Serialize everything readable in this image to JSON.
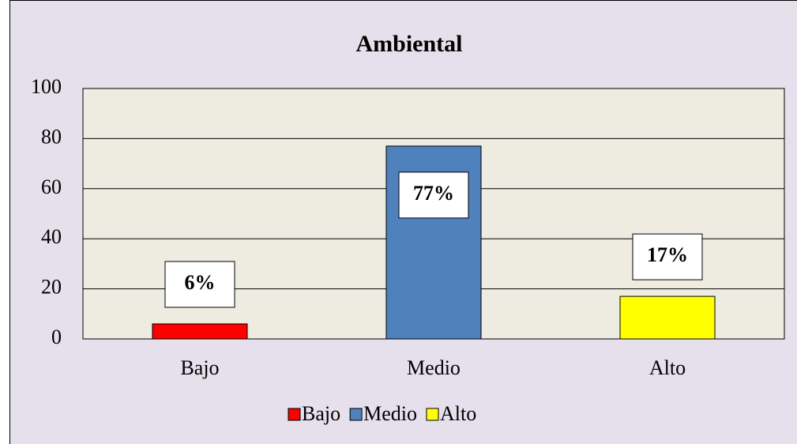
{
  "chart_data": {
    "type": "bar",
    "title": "Ambiental",
    "categories": [
      "Bajo",
      "Medio",
      "Alto"
    ],
    "values": [
      6,
      77,
      17
    ],
    "value_labels": [
      "6%",
      "77%",
      "17%"
    ],
    "colors": [
      "#ff0000",
      "#4f81bd",
      "#ffff00"
    ],
    "ylim": [
      0,
      100
    ],
    "yticks": [
      0,
      20,
      40,
      60,
      80,
      100
    ],
    "grid": true,
    "legend": "bottom"
  }
}
